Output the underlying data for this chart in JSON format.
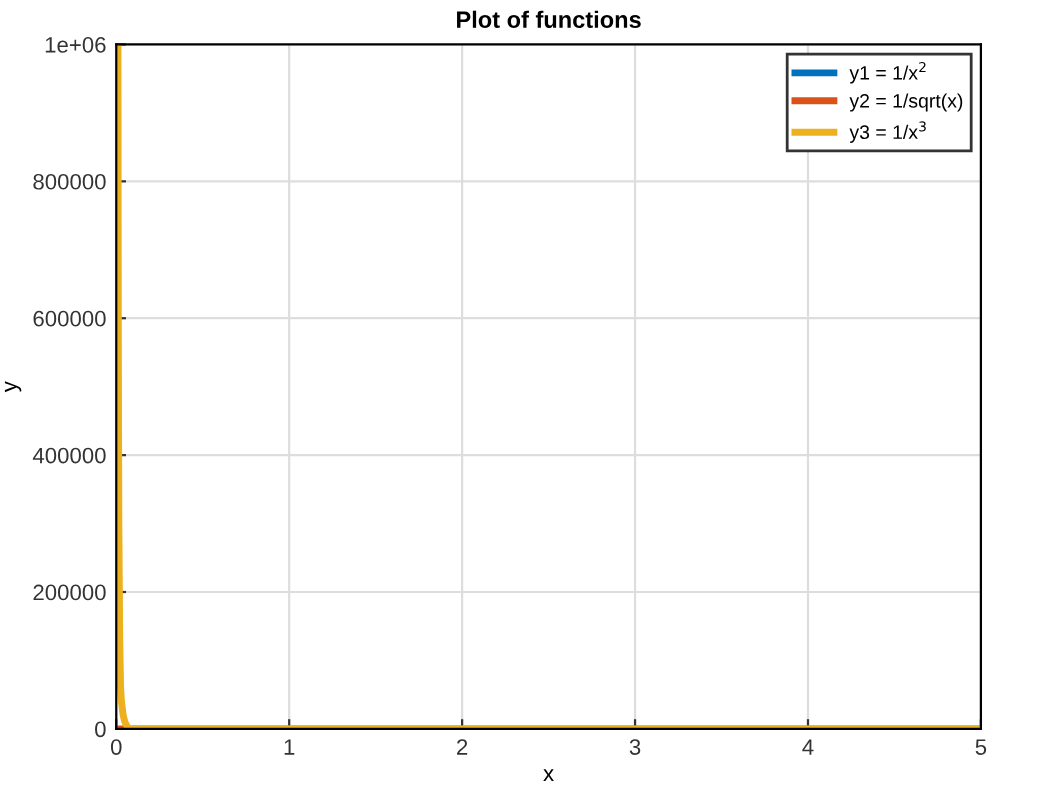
{
  "chart_data": {
    "type": "line",
    "title": "Plot of functions",
    "xlabel": "x",
    "ylabel": "y",
    "xlim": [
      0,
      5
    ],
    "xticks": [
      0,
      1,
      2,
      3,
      4,
      5
    ],
    "ylim": [
      0,
      1000000
    ],
    "yticks": [
      0,
      200000,
      400000,
      600000,
      800000,
      {
        "value": 1000000,
        "label": "1e+06"
      }
    ],
    "grid": true,
    "legend": "top right",
    "line_style": "solid",
    "marker": "none",
    "series": [
      {
        "name": "y1 = 1/x$^{2}$",
        "color": "#0072bd"
      },
      {
        "name": "y2 = 1/sqrt(x)",
        "color": "#d95319",
        "x": [
          0.01,
          0.015,
          0.02,
          0.03,
          0.05,
          0.1,
          0.2,
          0.5,
          1,
          2,
          3,
          4,
          5
        ],
        "values": [
          0,
          0,
          0,
          0,
          0,
          0,
          0,
          0,
          0,
          0,
          0,
          0,
          0
        ]
      },
      {
        "name": "y3 = 1/x$^{3}$",
        "color": "#edb120",
        "x": [
          0.01,
          0.011,
          0.012,
          0.013,
          0.015,
          0.02,
          0.025,
          0.03,
          0.04,
          0.05,
          0.07,
          0.1,
          0.2,
          0.5,
          1,
          2,
          3,
          4,
          5
        ],
        "values": [
          1000000,
          750000,
          580000,
          460000,
          300000,
          130000,
          60000,
          40000,
          20000,
          10000,
          0,
          0,
          0,
          0,
          0,
          0,
          0,
          0,
          0
        ]
      }
    ]
  }
}
